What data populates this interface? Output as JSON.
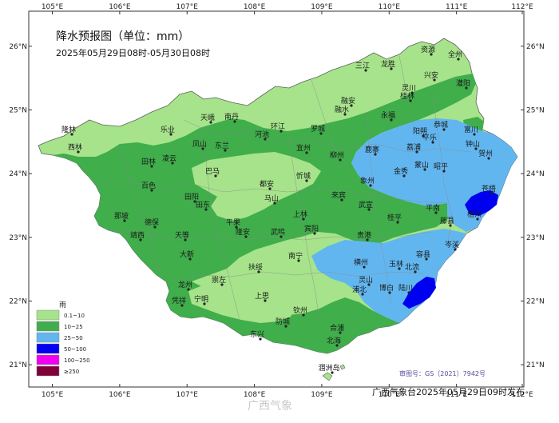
{
  "title": "降水预报图（单位：mm）",
  "subtitle": "2025年05月29日08时-05月30日08时",
  "issuer": "广西气象台2025年05月29日09时发布",
  "approval_number": "审图号：GS（2021）7942号",
  "watermark": "广西气象",
  "lon_ticks": [
    "105°E",
    "106°E",
    "107°E",
    "108°E",
    "109°E",
    "110°E",
    "111°E",
    "112°E"
  ],
  "lat_ticks": [
    "26°N",
    "25°N",
    "24°N",
    "23°N",
    "22°N",
    "21°N"
  ],
  "legend": {
    "title": "雨",
    "items": [
      {
        "label": "0.1~10",
        "color": "#a6e38a"
      },
      {
        "label": "10~25",
        "color": "#3fae4b"
      },
      {
        "label": "25~50",
        "color": "#62b6f0"
      },
      {
        "label": "50~100",
        "color": "#0000f0"
      },
      {
        "label": "100~250",
        "color": "#f000f0"
      },
      {
        "label": "≥250",
        "color": "#80003c"
      }
    ]
  },
  "cities": [
    "资源",
    "全州",
    "三江",
    "龙胜",
    "兴安",
    "灵川",
    "桂林",
    "灌阳",
    "融安",
    "融水",
    "永福",
    "隆林",
    "南丹",
    "天峨",
    "环江",
    "罗城",
    "乐业",
    "凤山",
    "东兰",
    "河池",
    "宜州",
    "鹿寨",
    "阳朔",
    "恭城",
    "平乐",
    "富川",
    "钟山",
    "贺州",
    "昭平",
    "蒙山",
    "荔浦",
    "西林",
    "田林",
    "凌云",
    "巴马",
    "都安",
    "忻城",
    "柳州",
    "象州",
    "金秀",
    "百色",
    "田阳",
    "田东",
    "马山",
    "上林",
    "来宾",
    "武宣",
    "桂平",
    "平南",
    "藤县",
    "苍梧",
    "梧州",
    "那坡",
    "德保",
    "靖西",
    "天等",
    "平果",
    "隆安",
    "武鸣",
    "宾阳",
    "贵港",
    "岑溪",
    "大新",
    "南宁",
    "横州",
    "容县",
    "北流",
    "玉林",
    "扶绥",
    "崇左",
    "龙州",
    "凭祥",
    "宁明",
    "上思",
    "灵山",
    "浦北",
    "博白",
    "陆川",
    "钦州",
    "防城",
    "合浦",
    "东兴",
    "北海",
    "涠洲岛"
  ]
}
